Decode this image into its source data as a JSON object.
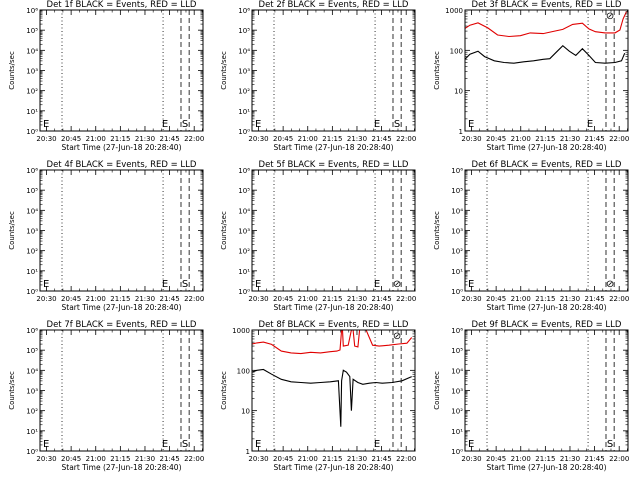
{
  "figure": {
    "xlabel": "Start Time (27-Jun-18 20:28:40)",
    "ylabel": "Counts/sec",
    "xticks": [
      "20:30",
      "20:45",
      "21:00",
      "21:15",
      "21:30",
      "21:45",
      "22:00"
    ],
    "colors": {
      "events": "#000000",
      "lld": "#e00000"
    },
    "markers": {
      "e": "E",
      "s": "S",
      "eclipse": "⊘"
    }
  },
  "chart_data": [
    {
      "type": "line",
      "title": "Det 1f BLACK = Events, RED = LLD",
      "yscale": "log",
      "yticks_kind": "exp",
      "ylim": [
        1,
        1000000
      ],
      "xlim": [
        0,
        100
      ],
      "series": [],
      "markers": [
        "e",
        "s"
      ]
    },
    {
      "type": "line",
      "title": "Det 2f BLACK = Events, RED = LLD",
      "yscale": "log",
      "yticks_kind": "exp",
      "ylim": [
        1,
        1000000
      ],
      "xlim": [
        0,
        100
      ],
      "series": [],
      "markers": [
        "e",
        "s"
      ]
    },
    {
      "type": "line",
      "title": "Det 3f BLACK = Events, RED = LLD",
      "yscale": "log",
      "yticks_kind": "plain",
      "ylim": [
        1,
        1000
      ],
      "xlim": [
        0,
        100
      ],
      "markers": [
        "e",
        "eclipse"
      ],
      "series": [
        {
          "color": "red",
          "x": [
            0,
            3,
            8,
            14,
            20,
            27,
            34,
            40,
            48,
            55,
            60,
            66,
            72,
            76,
            80,
            86,
            92,
            95,
            97,
            99,
            100
          ],
          "y": [
            350,
            420,
            480,
            360,
            240,
            220,
            230,
            270,
            260,
            300,
            330,
            440,
            470,
            340,
            290,
            270,
            270,
            320,
            600,
            900,
            900
          ]
        },
        {
          "color": "black",
          "x": [
            0,
            3,
            8,
            12,
            18,
            24,
            30,
            36,
            42,
            48,
            52,
            56,
            60,
            64,
            68,
            72,
            76,
            80,
            86,
            92,
            96,
            98
          ],
          "y": [
            60,
            80,
            95,
            70,
            55,
            50,
            48,
            52,
            55,
            60,
            62,
            90,
            130,
            95,
            75,
            110,
            75,
            50,
            48,
            50,
            55,
            85
          ]
        }
      ]
    },
    {
      "type": "line",
      "title": "Det 4f BLACK = Events, RED = LLD",
      "yscale": "log",
      "yticks_kind": "exp",
      "ylim": [
        1,
        1000000
      ],
      "xlim": [
        0,
        100
      ],
      "series": [],
      "markers": [
        "e",
        "s"
      ]
    },
    {
      "type": "line",
      "title": "Det 5f BLACK = Events, RED = LLD",
      "yscale": "log",
      "yticks_kind": "exp",
      "ylim": [
        1,
        1000000
      ],
      "xlim": [
        0,
        100
      ],
      "series": [],
      "markers": [
        "e",
        "eclipse"
      ]
    },
    {
      "type": "line",
      "title": "Det 6f BLACK = Events, RED = LLD",
      "yscale": "log",
      "yticks_kind": "exp",
      "ylim": [
        1,
        1000000
      ],
      "xlim": [
        0,
        100
      ],
      "series": [],
      "markers": [
        "eclipse"
      ]
    },
    {
      "type": "line",
      "title": "Det 7f BLACK = Events, RED = LLD",
      "yscale": "log",
      "yticks_kind": "exp",
      "ylim": [
        1,
        1000000
      ],
      "xlim": [
        0,
        100
      ],
      "series": [],
      "markers": [
        "e",
        "s"
      ]
    },
    {
      "type": "line",
      "title": "Det 8f BLACK = Events, RED = LLD",
      "yscale": "log",
      "yticks_kind": "plain",
      "ylim": [
        1,
        1000
      ],
      "xlim": [
        0,
        100
      ],
      "markers": [
        "e",
        "eclipse"
      ],
      "series": [
        {
          "color": "red",
          "x": [
            0,
            3,
            7,
            12,
            18,
            24,
            30,
            36,
            42,
            48,
            52,
            54,
            55,
            55.5,
            56,
            59,
            61,
            62,
            63,
            65,
            66,
            70,
            74,
            78,
            84,
            90,
            95,
            98
          ],
          "y": [
            450,
            480,
            500,
            440,
            300,
            270,
            260,
            280,
            270,
            290,
            300,
            320,
            1000,
            1000,
            400,
            420,
            1000,
            1000,
            400,
            380,
            1000,
            1000,
            420,
            400,
            420,
            450,
            470,
            650
          ]
        },
        {
          "color": "black",
          "x": [
            0,
            3,
            7,
            12,
            18,
            24,
            30,
            36,
            42,
            48,
            53,
            54.5,
            55,
            56,
            58,
            60,
            61,
            62,
            65,
            68,
            72,
            76,
            80,
            86,
            92,
            98
          ],
          "y": [
            90,
            100,
            105,
            80,
            60,
            52,
            50,
            48,
            50,
            52,
            55,
            4,
            55,
            100,
            90,
            70,
            10,
            60,
            50,
            45,
            48,
            50,
            48,
            50,
            55,
            70
          ]
        }
      ]
    },
    {
      "type": "line",
      "title": "Det 9f BLACK = Events, RED = LLD",
      "yscale": "log",
      "yticks_kind": "exp",
      "ylim": [
        1,
        1000000
      ],
      "xlim": [
        0,
        100
      ],
      "series": [],
      "markers": [
        "s"
      ]
    }
  ]
}
